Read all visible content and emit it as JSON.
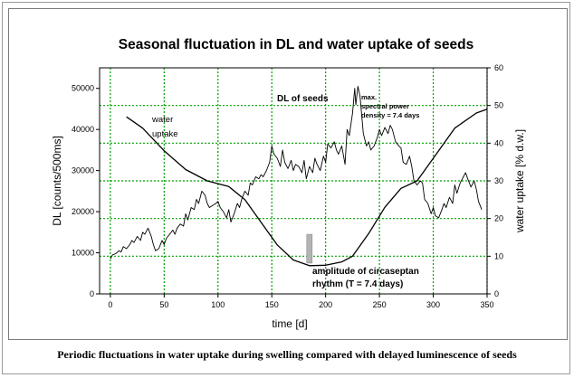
{
  "chart_data": {
    "type": "line",
    "title": "Seasonal fluctuation in DL and water uptake of seeds",
    "xlabel": "time [d]",
    "ylabel_left": "DL [counts/500ms]",
    "ylabel_right": "water uptake [% d.w.]",
    "xlim": [
      -10,
      350
    ],
    "ylim_left": [
      0,
      55000
    ],
    "ylim_right": [
      0,
      60
    ],
    "x_ticks": [
      0,
      50,
      100,
      150,
      200,
      250,
      300,
      350
    ],
    "y_left_ticks": [
      0,
      10000,
      20000,
      30000,
      40000,
      50000
    ],
    "y_right_ticks": [
      0,
      10,
      20,
      30,
      40,
      50,
      60
    ],
    "grid": true,
    "series": [
      {
        "name": "DL of seeds",
        "axis": "left",
        "x": [
          0,
          2,
          5,
          8,
          10,
          12,
          15,
          18,
          20,
          22,
          25,
          28,
          30,
          32,
          35,
          38,
          40,
          42,
          45,
          48,
          50,
          52,
          55,
          58,
          60,
          62,
          65,
          68,
          70,
          72,
          75,
          78,
          80,
          82,
          85,
          88,
          90,
          92,
          95,
          98,
          100,
          102,
          105,
          108,
          110,
          112,
          115,
          118,
          120,
          122,
          125,
          128,
          130,
          132,
          135,
          138,
          140,
          142,
          145,
          148,
          150,
          152,
          155,
          158,
          160,
          162,
          165,
          168,
          170,
          172,
          175,
          178,
          180,
          182,
          185,
          188,
          190,
          192,
          195,
          198,
          200,
          202,
          205,
          208,
          210,
          212,
          215,
          218,
          220,
          222,
          225,
          227,
          228,
          230,
          232,
          235,
          238,
          240,
          242,
          245,
          248,
          250,
          252,
          255,
          258,
          260,
          262,
          265,
          268,
          270,
          272,
          275,
          278,
          280,
          282,
          285,
          288,
          290,
          292,
          295,
          298,
          300,
          302,
          305,
          308,
          310,
          312,
          315,
          318,
          320,
          322,
          325,
          328,
          330,
          332,
          335,
          338,
          340,
          342,
          345
        ],
        "values": [
          8500,
          9500,
          9800,
          10500,
          10200,
          11500,
          11000,
          12000,
          13000,
          12500,
          14000,
          13000,
          15000,
          14500,
          16000,
          14000,
          12000,
          10500,
          11000,
          13000,
          12000,
          13500,
          14500,
          15500,
          14500,
          16000,
          17000,
          16500,
          19500,
          18000,
          21000,
          20500,
          23000,
          22000,
          25000,
          24000,
          22000,
          21000,
          21500,
          22000,
          22500,
          21000,
          20000,
          18500,
          20500,
          17500,
          19500,
          22000,
          21000,
          23000,
          25000,
          24000,
          27000,
          26500,
          28500,
          28000,
          29000,
          28500,
          30000,
          32000,
          36000,
          34000,
          33000,
          31000,
          35000,
          32000,
          30500,
          32500,
          30000,
          31500,
          31000,
          29500,
          32500,
          28000,
          31000,
          29500,
          33000,
          31500,
          30000,
          33500,
          32000,
          36500,
          35500,
          37000,
          35000,
          34000,
          36000,
          31500,
          40000,
          38500,
          44000,
          50000,
          46000,
          50500,
          48000,
          39000,
          36000,
          37000,
          35000,
          36000,
          38000,
          40000,
          38500,
          40500,
          39000,
          41000,
          40000,
          37000,
          36000,
          35500,
          32000,
          31500,
          33500,
          31000,
          27500,
          26500,
          27500,
          27000,
          23000,
          22000,
          19500,
          21000,
          19000,
          18500,
          20500,
          22000,
          21000,
          23500,
          22000,
          26500,
          24500,
          27000,
          28500,
          29500,
          28000,
          26000,
          27500,
          25500,
          22500,
          20500
        ]
      },
      {
        "name": "water uptake",
        "axis": "right",
        "x": [
          15,
          30,
          50,
          70,
          90,
          110,
          125,
          140,
          155,
          170,
          185,
          200,
          215,
          225,
          240,
          255,
          270,
          285,
          300,
          320,
          340,
          350
        ],
        "values": [
          47,
          44,
          38,
          33,
          30,
          28.5,
          25,
          19,
          13,
          9,
          7.5,
          7.6,
          8.5,
          10,
          16,
          23,
          28,
          30,
          36,
          44,
          48,
          49
        ]
      }
    ],
    "annotations": {
      "water_uptake_line1": "water",
      "water_uptake_line2": "uptake",
      "dl_label": "DL of seeds",
      "spectral_line1": "max.",
      "spectral_line2": "spectral power",
      "spectral_line3": "density = 7.4 days",
      "amplitude_line1": "amplitude of circaseptan",
      "amplitude_line2": "rhythm (T = 7.4 days)"
    },
    "amplitude_bar": {
      "x": 185,
      "left_low": 7500,
      "left_high": 14500
    }
  },
  "caption": "Periodic fluctuations in water uptake during swelling compared with delayed luminescence of seeds",
  "colors": {
    "grid": "#00a000",
    "line": "#000000",
    "amplitude_bar": "#b4b4b4"
  }
}
